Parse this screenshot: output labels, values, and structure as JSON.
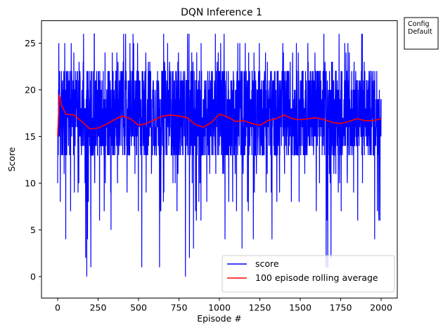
{
  "chart_data": {
    "type": "line",
    "title": "DQN Inference 1",
    "xlabel": "Episode #",
    "ylabel": "Score",
    "xlim": [
      -100,
      2100
    ],
    "ylim": [
      -2.3,
      27.4
    ],
    "x_ticks": [
      0,
      250,
      500,
      750,
      1000,
      1250,
      1500,
      1750,
      2000
    ],
    "y_ticks": [
      0,
      5,
      10,
      15,
      20,
      25
    ],
    "episodes": 2000,
    "score_mean": 16.7,
    "score_min": 0,
    "score_max": 26,
    "grid": false,
    "legend_position": "lower-right",
    "series": [
      {
        "name": "score",
        "color": "#0000ff",
        "summary": "per-episode score, oscillating mostly between 13 and 23 with occasional dips to 0-10 and spikes to 26"
      },
      {
        "name": "100 episode rolling average",
        "color": "#ff0000",
        "x": [
          0,
          10,
          25,
          50,
          100,
          150,
          200,
          250,
          300,
          350,
          400,
          450,
          500,
          550,
          600,
          650,
          700,
          750,
          800,
          850,
          900,
          950,
          1000,
          1050,
          1100,
          1150,
          1200,
          1250,
          1300,
          1350,
          1400,
          1450,
          1500,
          1550,
          1600,
          1650,
          1700,
          1750,
          1800,
          1850,
          1900,
          1950,
          2000
        ],
        "values": [
          15.0,
          19.5,
          18.3,
          17.4,
          17.3,
          16.6,
          15.8,
          15.9,
          16.3,
          16.8,
          17.2,
          16.9,
          16.2,
          16.4,
          16.8,
          17.2,
          17.3,
          17.2,
          17.0,
          16.3,
          16.0,
          16.5,
          17.4,
          17.1,
          16.6,
          16.7,
          16.4,
          16.2,
          16.7,
          16.9,
          17.3,
          16.9,
          16.8,
          16.9,
          17.0,
          16.8,
          16.5,
          16.4,
          16.6,
          16.9,
          16.7,
          16.7,
          16.9
        ]
      }
    ],
    "annotation": "Config\nDefault"
  }
}
